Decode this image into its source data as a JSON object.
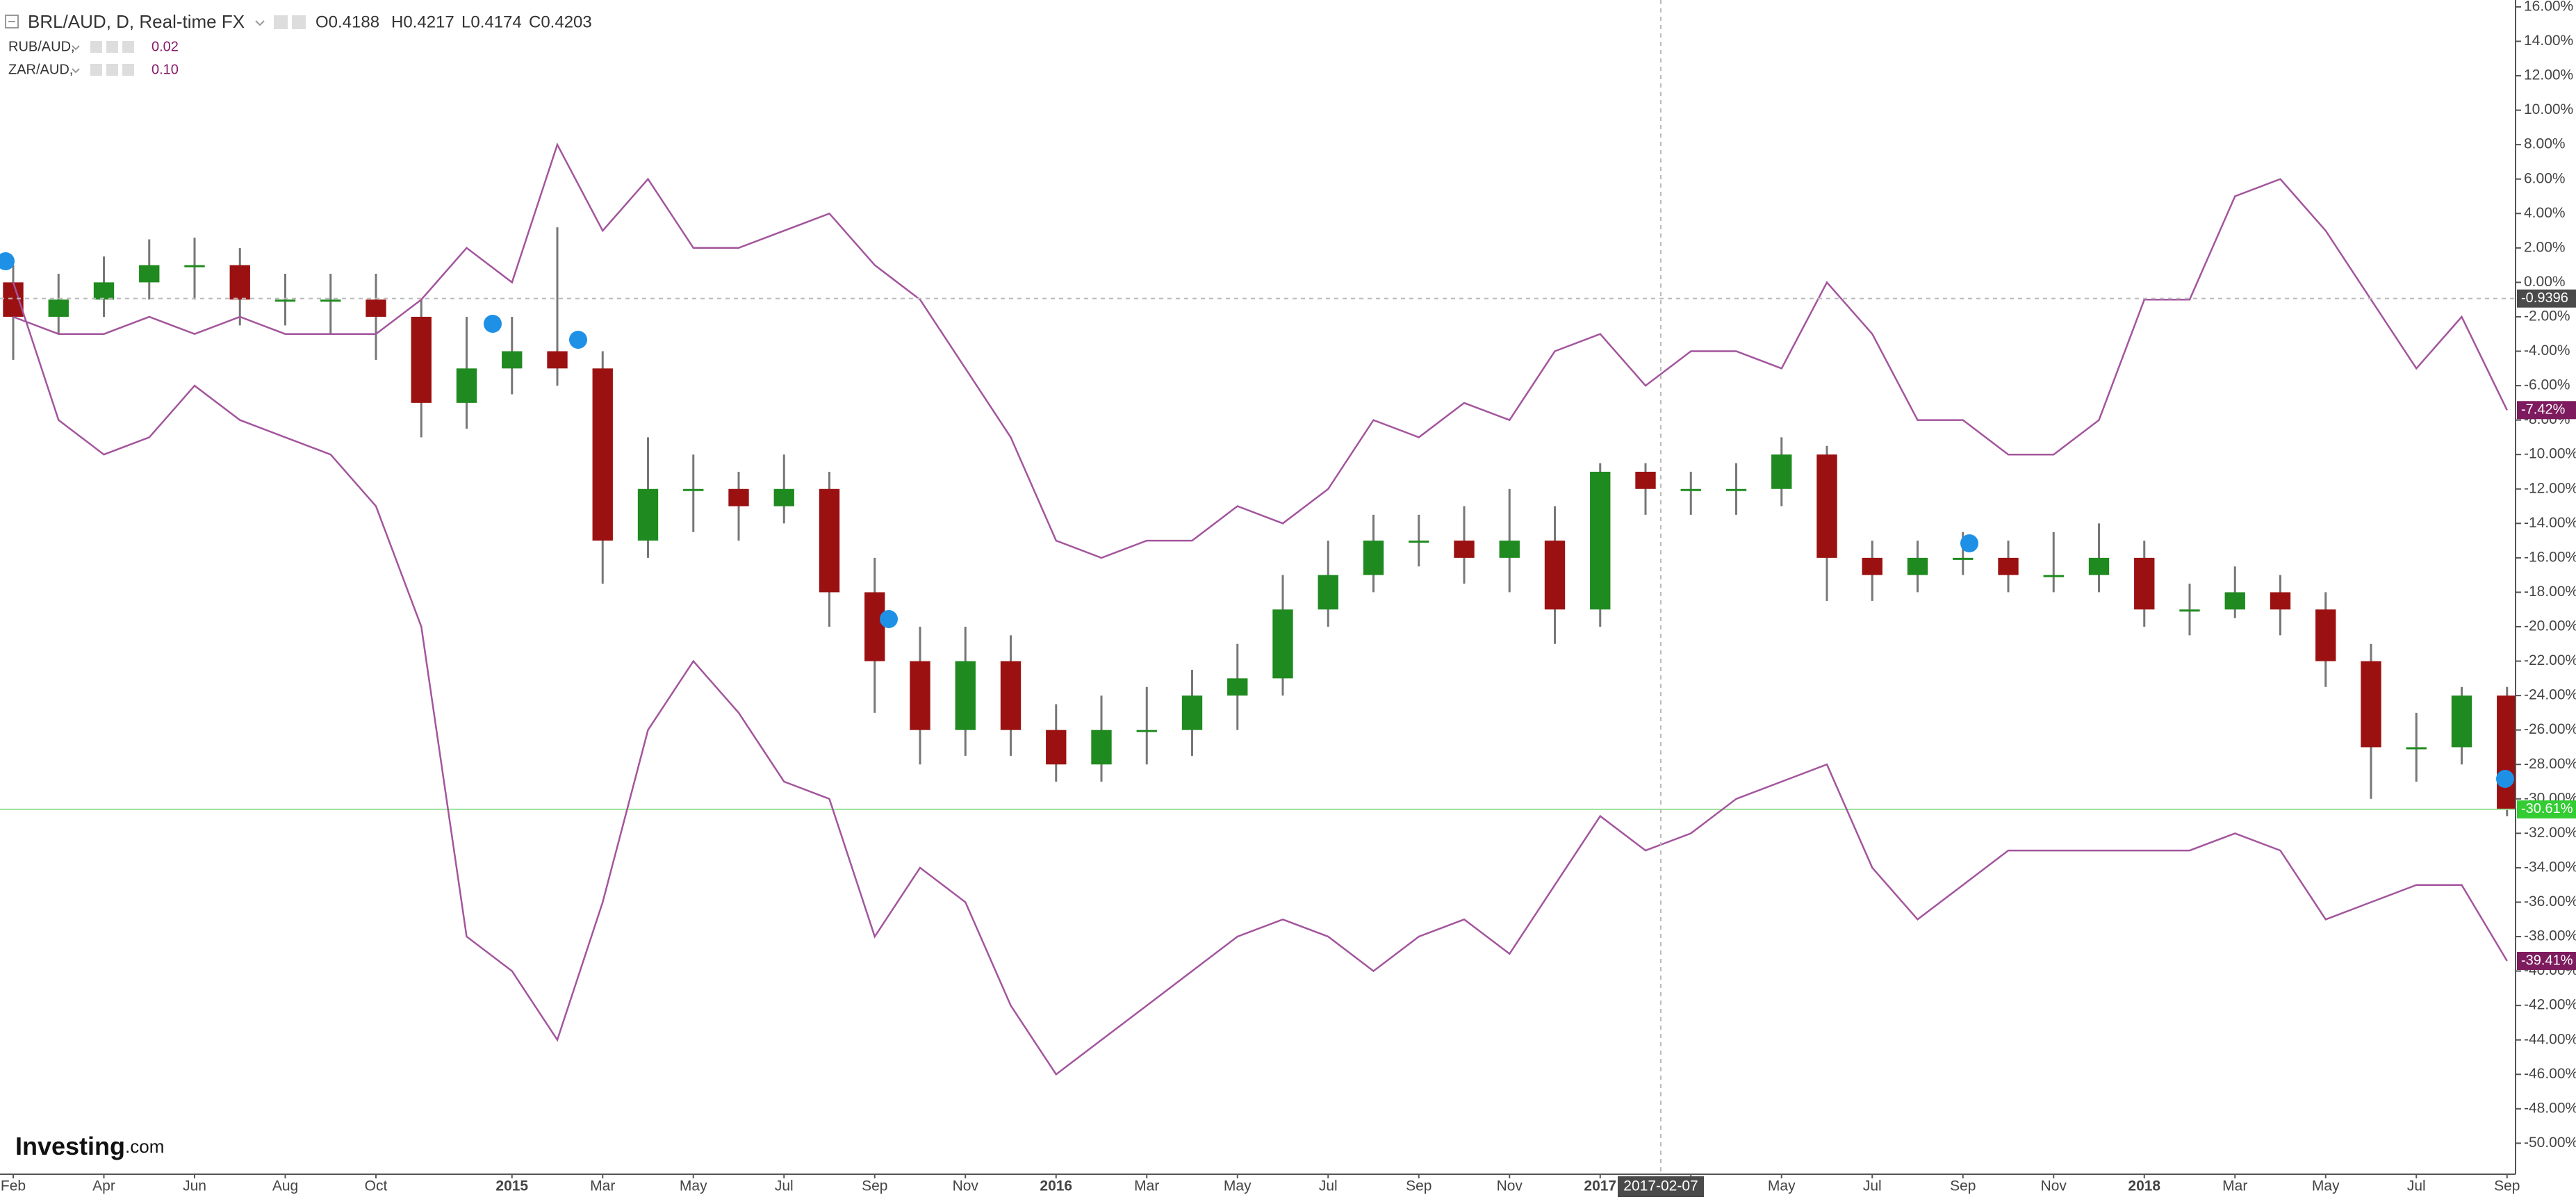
{
  "chart_data": {
    "type": "candlestick",
    "categories": [
      "Feb",
      null,
      "Apr",
      null,
      "Jun",
      null,
      "Aug",
      null,
      "Oct",
      null,
      null,
      "2015",
      null,
      "Mar",
      null,
      "May",
      null,
      "Jul",
      null,
      "Sep",
      null,
      "Nov",
      null,
      "2016",
      null,
      "Mar",
      null,
      "May",
      null,
      "Jul",
      null,
      "Sep",
      null,
      "Nov",
      null,
      "2017",
      null,
      "Mar",
      null,
      "May",
      null,
      "Jul",
      null,
      "Sep",
      null,
      "Nov",
      null,
      "2018",
      null,
      "Mar",
      null,
      "May",
      null,
      "Jul",
      null,
      "Sep"
    ],
    "series": [
      {
        "type": "candlestick",
        "name": "BRL/AUD, D, Real-time FX",
        "ohlc_labels": [
          "O0.4188",
          "H0.4217",
          "L0.4174",
          "C0.4203"
        ],
        "up_color": "#1f8a1f",
        "down_color": "#9b1111",
        "wick_color": "#777777",
        "badge_color": "#33cc33",
        "price_line_color": "#9be09b",
        "last_label": "-30.61%",
        "open": [
          0,
          -2,
          -1,
          0,
          1,
          1,
          -1,
          -1,
          -1,
          -2,
          -7,
          -5,
          -4,
          -5,
          -15,
          -12,
          -12,
          -13,
          -12,
          -18,
          -22,
          -26,
          -22,
          -26,
          -28,
          -26,
          -26,
          -24,
          -23,
          -19,
          -17,
          -15,
          -15,
          -16,
          -15,
          -19,
          -11,
          -12,
          -12,
          -12,
          -10,
          -16,
          -17,
          -16,
          -16,
          -17,
          -17,
          -16,
          -19,
          -19,
          -18,
          -19,
          -22,
          -27,
          -27,
          -24
        ],
        "high": [
          1,
          0.5,
          1.5,
          2.5,
          2.6,
          2,
          0.5,
          0.5,
          0.5,
          -1,
          -2,
          -2,
          3.2,
          -4,
          -9,
          -10,
          -11,
          -10,
          -11,
          -16,
          -20,
          -20,
          -20.5,
          -24.5,
          -24,
          -23.5,
          -22.5,
          -21,
          -17,
          -15,
          -13.5,
          -13.5,
          -13,
          -12,
          -13,
          -10.5,
          -10.5,
          -11,
          -10.5,
          -9,
          -9.5,
          -15,
          -15,
          -14.5,
          -15,
          -14.5,
          -14,
          -15,
          -17.5,
          -16.5,
          -17,
          -18,
          -21,
          -25,
          -23.5,
          -23.5
        ],
        "low": [
          -4.5,
          -3,
          -2,
          -1,
          -1,
          -2.5,
          -2.5,
          -3,
          -4.5,
          -9,
          -8.5,
          -6.5,
          -6,
          -17.5,
          -16,
          -14.5,
          -15,
          -14,
          -20,
          -25,
          -28,
          -27.5,
          -27.5,
          -29,
          -29,
          -28,
          -27.5,
          -26,
          -24,
          -20,
          -18,
          -16.5,
          -17.5,
          -18,
          -21,
          -20,
          -13.5,
          -13.5,
          -13.5,
          -13,
          -18.5,
          -18.5,
          -18,
          -17,
          -18,
          -18,
          -18,
          -20,
          -20.5,
          -19.5,
          -20.5,
          -23.5,
          -30,
          -29,
          -28,
          -31
        ],
        "close": [
          -2,
          -1,
          0,
          1,
          1,
          -1,
          -1,
          -1,
          -2,
          -7,
          -5,
          -4,
          -5,
          -15,
          -12,
          -12,
          -13,
          -12,
          -18,
          -22,
          -26,
          -22,
          -26,
          -28,
          -26,
          -26,
          -24,
          -23,
          -19,
          -17,
          -15,
          -15,
          -16,
          -15,
          -19,
          -11,
          -12,
          -12,
          -12,
          -10,
          -16,
          -17,
          -16,
          -16,
          -17,
          -17,
          -16,
          -19,
          -19,
          -18,
          -19,
          -22,
          -27,
          -27,
          -24,
          -30.61
        ]
      },
      {
        "type": "line",
        "name": "RUB/AUD,",
        "legend_value": "0.02",
        "color": "#a3559d",
        "badge_color": "#7d1b5e",
        "last_label": "-39.41%",
        "values": [
          0,
          -8,
          -10,
          -9,
          -6,
          -8,
          -9,
          -10,
          -13,
          -20,
          -38,
          -40,
          -44,
          -36,
          -26,
          -22,
          -25,
          -29,
          -30,
          -38,
          -34,
          -36,
          -42,
          -46,
          -44,
          -42,
          -40,
          -38,
          -37,
          -38,
          -40,
          -38,
          -37,
          -39,
          -35,
          -31,
          -33,
          -32,
          -30,
          -29,
          -28,
          -34,
          -37,
          -35,
          -33,
          -33,
          -33,
          -33,
          -33,
          -32,
          -33,
          -37,
          -36,
          -35,
          -35,
          -39.41
        ]
      },
      {
        "type": "line",
        "name": "ZAR/AUD,",
        "legend_value": "0.10",
        "color": "#a3559d",
        "badge_color": "#7d1b5e",
        "last_label": "-7.42%",
        "values": [
          -2,
          -3,
          -3,
          -2,
          -3,
          -2,
          -3,
          -3,
          -3,
          -1,
          2,
          0,
          8,
          3,
          6,
          2,
          2,
          3,
          4,
          1,
          -1,
          -5,
          -9,
          -15,
          -16,
          -15,
          -15,
          -13,
          -14,
          -12,
          -8,
          -9,
          -7,
          -8,
          -4,
          -3,
          -6,
          -4,
          -4,
          -5,
          0,
          -3,
          -8,
          -8,
          -10,
          -10,
          -8,
          -1,
          -1,
          5,
          6,
          3,
          -1,
          -5,
          -2,
          -7.42
        ]
      }
    ],
    "ylim": [
      -51.8,
      16.4
    ],
    "yticks": [
      {
        "value": 16,
        "label": "16.00%"
      },
      {
        "value": 14,
        "label": "14.00%"
      },
      {
        "value": 12,
        "label": "12.00%"
      },
      {
        "value": 10,
        "label": "10.00%"
      },
      {
        "value": 8,
        "label": "8.00%"
      },
      {
        "value": 6,
        "label": "6.00%"
      },
      {
        "value": 4,
        "label": "4.00%"
      },
      {
        "value": 2,
        "label": "2.00%"
      },
      {
        "value": 0,
        "label": "0.00%"
      },
      {
        "value": -2,
        "label": "-2.00%"
      },
      {
        "value": -4,
        "label": "-4.00%"
      },
      {
        "value": -6,
        "label": "-6.00%"
      },
      {
        "value": -8,
        "label": "-8.00%"
      },
      {
        "value": -10,
        "label": "-10.00%"
      },
      {
        "value": -12,
        "label": "-12.00%"
      },
      {
        "value": -14,
        "label": "-14.00%"
      },
      {
        "value": -16,
        "label": "-16.00%"
      },
      {
        "value": -18,
        "label": "-18.00%"
      },
      {
        "value": -20,
        "label": "-20.00%"
      },
      {
        "value": -22,
        "label": "-22.00%"
      },
      {
        "value": -24,
        "label": "-24.00%"
      },
      {
        "value": -26,
        "label": "-26.00%"
      },
      {
        "value": -28,
        "label": "-28.00%"
      },
      {
        "value": -30,
        "label": "-30.00%"
      },
      {
        "value": -32,
        "label": "-32.00%"
      },
      {
        "value": -34,
        "label": "-34.00%"
      },
      {
        "value": -36,
        "label": "-36.00%"
      },
      {
        "value": -38,
        "label": "-38.00%"
      },
      {
        "value": -40,
        "label": "-40.00%"
      },
      {
        "value": -42,
        "label": "-42.00%"
      },
      {
        "value": -44,
        "label": "-44.00%"
      },
      {
        "value": -46,
        "label": "-46.00%"
      },
      {
        "value": -48,
        "label": "-48.00%"
      },
      {
        "value": -50,
        "label": "-50.00%"
      }
    ],
    "grid": false,
    "crosshair": {
      "x_label": "2017-02-07",
      "y_value": -0.9396
    },
    "branding": {
      "name": "Investing",
      "suffix": ".com"
    }
  }
}
